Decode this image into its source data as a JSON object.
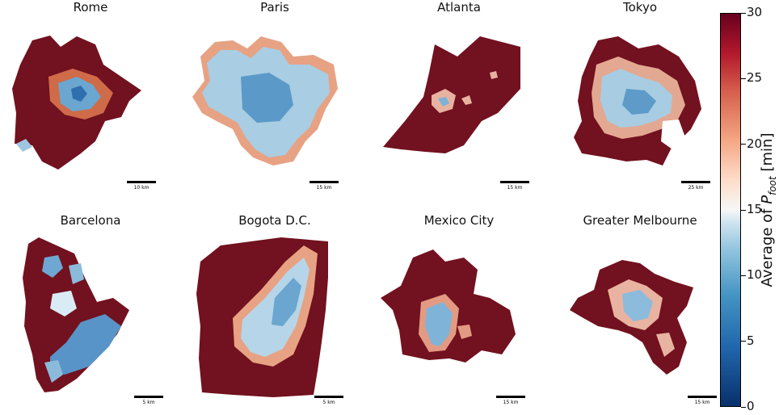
{
  "panels": [
    {
      "title": "Rome",
      "scale_label": "10 km"
    },
    {
      "title": "Paris",
      "scale_label": "15 km"
    },
    {
      "title": "Atlanta",
      "scale_label": "15 km"
    },
    {
      "title": "Tokyo",
      "scale_label": "25 km"
    },
    {
      "title": "Barcelona",
      "scale_label": "5 km"
    },
    {
      "title": "Bogota D.C.",
      "scale_label": "5 km"
    },
    {
      "title": "Mexico City",
      "scale_label": "15 km"
    },
    {
      "title": "Greater Melbourne",
      "scale_label": "15 km"
    }
  ],
  "colorbar": {
    "title_prefix": "Average of",
    "title_var": "P",
    "title_sub": "foot",
    "title_unit": "[min]",
    "min": 0,
    "max": 30,
    "ticks": [
      "0",
      "5",
      "10",
      "15",
      "20",
      "25",
      "30"
    ],
    "colormap": "RdBu_r",
    "colors": {
      "low": "#0a3f7a",
      "mid": "#f5f5f5",
      "high": "#72111f"
    }
  }
}
